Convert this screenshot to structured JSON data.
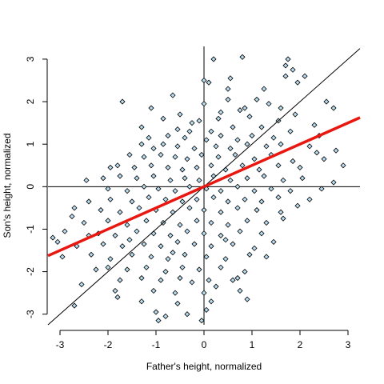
{
  "chart_data": {
    "type": "scatter",
    "xlabel": "Father's height, normalized",
    "ylabel": "Son's height, normalized",
    "xlim": [
      -3.25,
      3.25
    ],
    "ylim": [
      -3.25,
      3.3
    ],
    "x_ticks": [
      -3,
      -2,
      -1,
      0,
      1,
      2,
      3
    ],
    "y_ticks": [
      -3,
      -2,
      -1,
      0,
      1,
      2,
      3
    ],
    "point_fill": "#b8dcef",
    "point_stroke": "#000000",
    "regression_line": {
      "slope": 0.5,
      "intercept": 0.0,
      "color": "#e8170f"
    },
    "identity_line": {
      "slope": 1.0,
      "intercept": 0.0,
      "color": "#000000"
    },
    "reference_lines": {
      "x": 0,
      "y": 0
    },
    "points": [
      [
        0.2,
        3.0
      ],
      [
        0.8,
        3.05
      ],
      [
        1.75,
        3.0
      ],
      [
        1.7,
        2.85
      ],
      [
        1.85,
        2.75
      ],
      [
        1.7,
        2.6
      ],
      [
        2.1,
        2.6
      ],
      [
        1.95,
        2.45
      ],
      [
        0.0,
        2.5
      ],
      [
        0.1,
        2.45
      ],
      [
        0.5,
        2.3
      ],
      [
        1.25,
        2.3
      ],
      [
        0.5,
        2.05
      ],
      [
        -0.65,
        2.15
      ],
      [
        -1.7,
        2.0
      ],
      [
        1.1,
        2.05
      ],
      [
        2.55,
        2.0
      ],
      [
        2.7,
        1.85
      ],
      [
        -1.1,
        1.85
      ],
      [
        0.75,
        1.8
      ],
      [
        0.85,
        1.85
      ],
      [
        1.35,
        1.95
      ],
      [
        1.55,
        1.55
      ],
      [
        -0.1,
        1.55
      ],
      [
        -0.25,
        1.5
      ],
      [
        0.3,
        1.6
      ],
      [
        0.95,
        1.65
      ],
      [
        -1.3,
        1.4
      ],
      [
        -0.55,
        1.35
      ],
      [
        -0.3,
        1.3
      ],
      [
        0.15,
        1.3
      ],
      [
        0.6,
        1.4
      ],
      [
        1.2,
        1.4
      ],
      [
        -1.15,
        1.15
      ],
      [
        -0.75,
        1.2
      ],
      [
        -0.4,
        1.15
      ],
      [
        0.05,
        1.1
      ],
      [
        0.35,
        1.2
      ],
      [
        0.7,
        1.1
      ],
      [
        1.0,
        1.2
      ],
      [
        1.45,
        1.15
      ],
      [
        1.8,
        1.3
      ],
      [
        2.4,
        1.2
      ],
      [
        -1.3,
        1.0
      ],
      [
        -1.05,
        0.9
      ],
      [
        -0.85,
        1.0
      ],
      [
        -0.55,
        0.95
      ],
      [
        -0.2,
        0.9
      ],
      [
        0.25,
        0.95
      ],
      [
        0.55,
        0.9
      ],
      [
        0.9,
        1.0
      ],
      [
        1.3,
        0.95
      ],
      [
        1.6,
        1.0
      ],
      [
        2.2,
        0.95
      ],
      [
        2.75,
        0.85
      ],
      [
        -1.55,
        0.75
      ],
      [
        -1.25,
        0.7
      ],
      [
        -0.9,
        0.75
      ],
      [
        -0.6,
        0.7
      ],
      [
        -0.35,
        0.65
      ],
      [
        -0.05,
        0.75
      ],
      [
        0.3,
        0.7
      ],
      [
        0.65,
        0.75
      ],
      [
        1.05,
        0.65
      ],
      [
        1.4,
        0.75
      ],
      [
        1.85,
        0.6
      ],
      [
        2.5,
        0.65
      ],
      [
        -1.8,
        0.5
      ],
      [
        -1.45,
        0.45
      ],
      [
        -1.1,
        0.5
      ],
      [
        -0.75,
        0.45
      ],
      [
        -0.45,
        0.4
      ],
      [
        -0.15,
        0.45
      ],
      [
        0.15,
        0.5
      ],
      [
        0.45,
        0.4
      ],
      [
        0.8,
        0.5
      ],
      [
        1.15,
        0.4
      ],
      [
        1.55,
        0.5
      ],
      [
        2.0,
        0.45
      ],
      [
        2.9,
        0.5
      ],
      [
        -2.45,
        0.15
      ],
      [
        -2.1,
        0.2
      ],
      [
        -1.75,
        0.25
      ],
      [
        -1.4,
        0.2
      ],
      [
        -1.05,
        0.25
      ],
      [
        -0.7,
        0.15
      ],
      [
        -0.4,
        0.2
      ],
      [
        -0.1,
        0.15
      ],
      [
        0.2,
        0.25
      ],
      [
        0.55,
        0.15
      ],
      [
        0.9,
        0.2
      ],
      [
        1.25,
        0.25
      ],
      [
        1.65,
        0.15
      ],
      [
        2.05,
        0.2
      ],
      [
        2.7,
        0.1
      ],
      [
        -2.0,
        -0.05
      ],
      [
        -1.6,
        -0.1
      ],
      [
        -1.25,
        0.0
      ],
      [
        -0.95,
        -0.05
      ],
      [
        -0.6,
        -0.1
      ],
      [
        -0.3,
        0.0
      ],
      [
        0.05,
        -0.05
      ],
      [
        0.35,
        -0.1
      ],
      [
        0.7,
        0.0
      ],
      [
        1.05,
        -0.1
      ],
      [
        1.4,
        -0.05
      ],
      [
        1.8,
        -0.1
      ],
      [
        -2.4,
        -0.35
      ],
      [
        -1.95,
        -0.3
      ],
      [
        -1.5,
        -0.35
      ],
      [
        -1.15,
        -0.25
      ],
      [
        -0.8,
        -0.3
      ],
      [
        -0.45,
        -0.35
      ],
      [
        -0.15,
        -0.3
      ],
      [
        0.2,
        -0.25
      ],
      [
        0.5,
        -0.35
      ],
      [
        0.85,
        -0.3
      ],
      [
        1.2,
        -0.35
      ],
      [
        1.55,
        -0.25
      ],
      [
        2.2,
        -0.3
      ],
      [
        -2.7,
        -0.5
      ],
      [
        -2.15,
        -0.55
      ],
      [
        -1.75,
        -0.6
      ],
      [
        -1.35,
        -0.5
      ],
      [
        -1.0,
        -0.55
      ],
      [
        -0.65,
        -0.6
      ],
      [
        -0.3,
        -0.5
      ],
      [
        0.0,
        -0.55
      ],
      [
        0.35,
        -0.6
      ],
      [
        0.7,
        -0.5
      ],
      [
        1.1,
        -0.55
      ],
      [
        1.6,
        -0.6
      ],
      [
        -2.5,
        -0.85
      ],
      [
        -2.0,
        -0.8
      ],
      [
        -1.6,
        -0.9
      ],
      [
        -1.2,
        -0.8
      ],
      [
        -0.85,
        -0.85
      ],
      [
        -0.5,
        -0.9
      ],
      [
        -0.15,
        -0.8
      ],
      [
        0.15,
        -0.85
      ],
      [
        0.5,
        -0.9
      ],
      [
        0.9,
        -0.8
      ],
      [
        1.3,
        -0.85
      ],
      [
        1.65,
        -0.75
      ],
      [
        -2.9,
        -1.05
      ],
      [
        -2.2,
        -1.1
      ],
      [
        -1.85,
        -1.15
      ],
      [
        -1.4,
        -1.05
      ],
      [
        -1.05,
        -1.1
      ],
      [
        -0.7,
        -1.15
      ],
      [
        -0.35,
        -1.05
      ],
      [
        0.0,
        -1.1
      ],
      [
        0.35,
        -1.15
      ],
      [
        0.75,
        -1.05
      ],
      [
        1.2,
        -1.1
      ],
      [
        -3.15,
        -1.2
      ],
      [
        -2.65,
        -1.4
      ],
      [
        -2.1,
        -1.35
      ],
      [
        -1.7,
        -1.4
      ],
      [
        -1.25,
        -1.35
      ],
      [
        -0.9,
        -1.4
      ],
      [
        -0.55,
        -1.3
      ],
      [
        -0.2,
        -1.35
      ],
      [
        0.15,
        -1.4
      ],
      [
        0.6,
        -1.35
      ],
      [
        1.05,
        -1.45
      ],
      [
        -2.95,
        -1.65
      ],
      [
        -2.35,
        -1.6
      ],
      [
        -1.95,
        -1.7
      ],
      [
        -1.5,
        -1.6
      ],
      [
        -1.1,
        -1.65
      ],
      [
        -0.75,
        -1.7
      ],
      [
        -0.4,
        -1.6
      ],
      [
        0.05,
        -1.65
      ],
      [
        0.45,
        -1.7
      ],
      [
        0.95,
        -1.6
      ],
      [
        -2.0,
        -1.9
      ],
      [
        -1.6,
        -1.95
      ],
      [
        -1.2,
        -1.9
      ],
      [
        -0.8,
        -2.0
      ],
      [
        -0.45,
        -1.9
      ],
      [
        -0.1,
        -1.95
      ],
      [
        0.35,
        -1.9
      ],
      [
        0.85,
        -2.0
      ],
      [
        -1.75,
        -2.2
      ],
      [
        -1.3,
        -2.15
      ],
      [
        -0.9,
        -2.2
      ],
      [
        -0.5,
        -2.15
      ],
      [
        0.1,
        -2.2
      ],
      [
        0.6,
        -2.2
      ],
      [
        -2.55,
        -2.3
      ],
      [
        -1.85,
        -2.45
      ],
      [
        -1.05,
        -2.45
      ],
      [
        -0.6,
        -2.5
      ],
      [
        0.0,
        -2.5
      ],
      [
        0.75,
        -2.45
      ],
      [
        -1.8,
        -2.6
      ],
      [
        -1.3,
        -2.7
      ],
      [
        -0.55,
        -2.75
      ],
      [
        0.15,
        -2.7
      ],
      [
        0.9,
        -2.65
      ],
      [
        -2.7,
        -2.8
      ],
      [
        -1.0,
        -2.95
      ],
      [
        -0.35,
        -3.0
      ],
      [
        0.05,
        -2.9
      ],
      [
        -0.95,
        -3.15
      ],
      [
        -0.8,
        -3.05
      ],
      [
        -0.05,
        -3.15
      ],
      [
        0.0,
        1.95
      ],
      [
        0.35,
        1.75
      ],
      [
        -0.5,
        1.7
      ],
      [
        1.6,
        1.85
      ],
      [
        2.3,
        1.45
      ],
      [
        -2.75,
        -0.7
      ],
      [
        -3.05,
        -1.3
      ],
      [
        0.7,
        -2.15
      ],
      [
        1.3,
        -1.65
      ],
      [
        0.25,
        -2.35
      ],
      [
        -0.25,
        -2.25
      ],
      [
        0.55,
        2.55
      ],
      [
        -0.85,
        1.6
      ],
      [
        1.9,
        1.7
      ],
      [
        2.35,
        0.8
      ],
      [
        -1.95,
        0.45
      ],
      [
        2.45,
        -0.05
      ],
      [
        1.95,
        -0.45
      ],
      [
        1.45,
        -1.3
      ],
      [
        0.45,
        -1.25
      ],
      [
        -0.65,
        -1.55
      ],
      [
        -1.55,
        -1.25
      ],
      [
        -2.25,
        -1.95
      ],
      [
        -2.4,
        -1.15
      ]
    ]
  }
}
